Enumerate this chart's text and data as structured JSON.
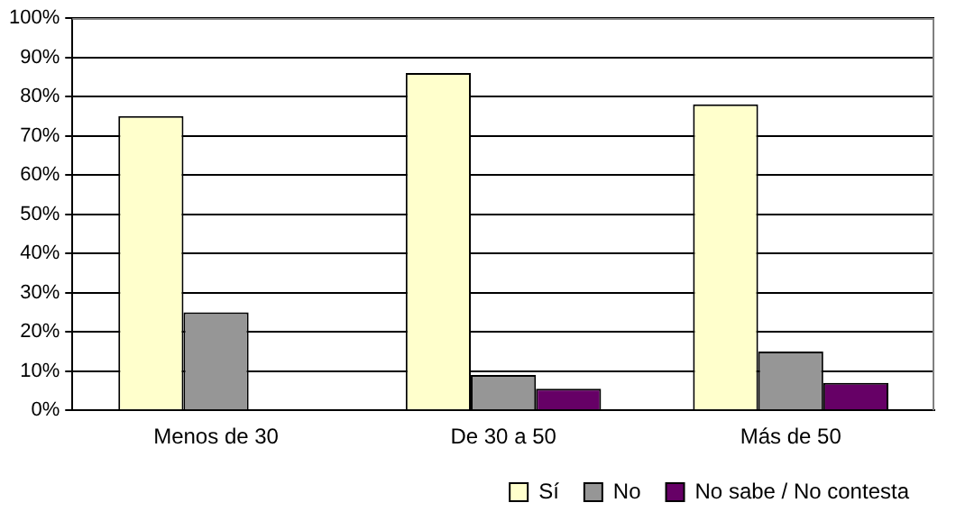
{
  "chart_data": {
    "type": "bar",
    "categories": [
      "Menos de 30",
      "De 30 a 50",
      "Más de 50"
    ],
    "series": [
      {
        "name": "Sí",
        "color": "#ffffcc",
        "values": [
          75,
          86,
          78
        ]
      },
      {
        "name": "No",
        "color": "#969696",
        "values": [
          25,
          9,
          15
        ]
      },
      {
        "name": "No sabe / No contesta",
        "color": "#660066",
        "values": [
          0,
          5.5,
          7
        ]
      }
    ],
    "ylim": [
      0,
      100
    ],
    "yticks": [
      {
        "value": 0,
        "label": "0%"
      },
      {
        "value": 10,
        "label": "10%"
      },
      {
        "value": 20,
        "label": "20%"
      },
      {
        "value": 30,
        "label": "30%"
      },
      {
        "value": 40,
        "label": "40%"
      },
      {
        "value": 50,
        "label": "50%"
      },
      {
        "value": 60,
        "label": "60%"
      },
      {
        "value": 70,
        "label": "70%"
      },
      {
        "value": 80,
        "label": "80%"
      },
      {
        "value": 90,
        "label": "90%"
      },
      {
        "value": 100,
        "label": "100%"
      }
    ],
    "grid": "y",
    "legend": "bottom right"
  }
}
